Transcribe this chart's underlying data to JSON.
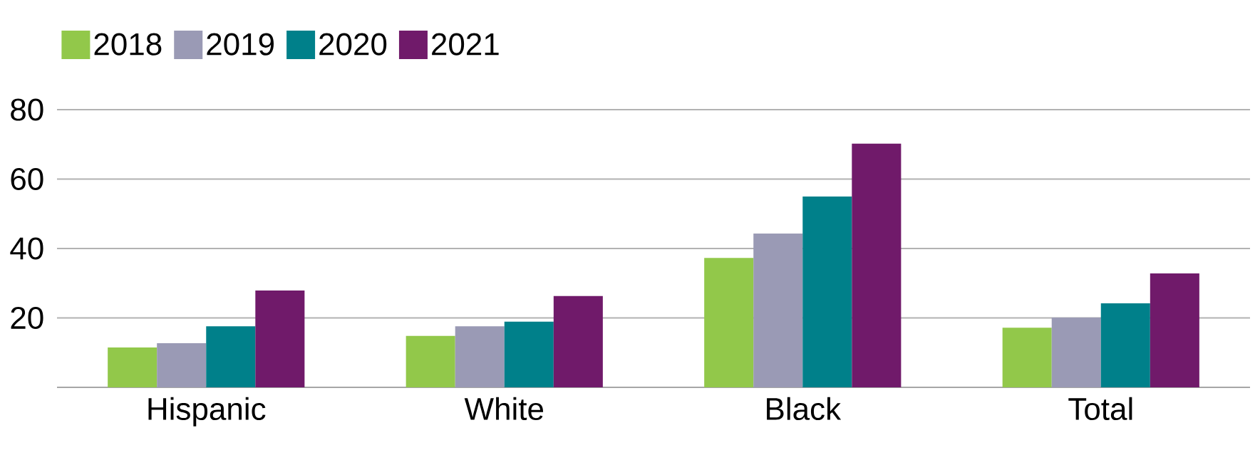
{
  "chart_data": {
    "type": "bar",
    "categories": [
      "Hispanic",
      "White",
      "Black",
      "Total"
    ],
    "series": [
      {
        "name": "2018",
        "color": "#92c84a",
        "values": [
          11.5,
          14.8,
          37.3,
          17.2
        ]
      },
      {
        "name": "2019",
        "color": "#9a9ab5",
        "values": [
          12.7,
          17.6,
          44.3,
          20.1
        ]
      },
      {
        "name": "2020",
        "color": "#00808a",
        "values": [
          17.6,
          18.9,
          55,
          24.2
        ]
      },
      {
        "name": "2021",
        "color": "#701a6a",
        "values": [
          27.9,
          26.3,
          70.2,
          32.8
        ]
      }
    ],
    "ylim": [
      0,
      80
    ],
    "yticks": [
      20,
      40,
      60,
      80
    ],
    "grid": "y",
    "legend": "top left"
  }
}
